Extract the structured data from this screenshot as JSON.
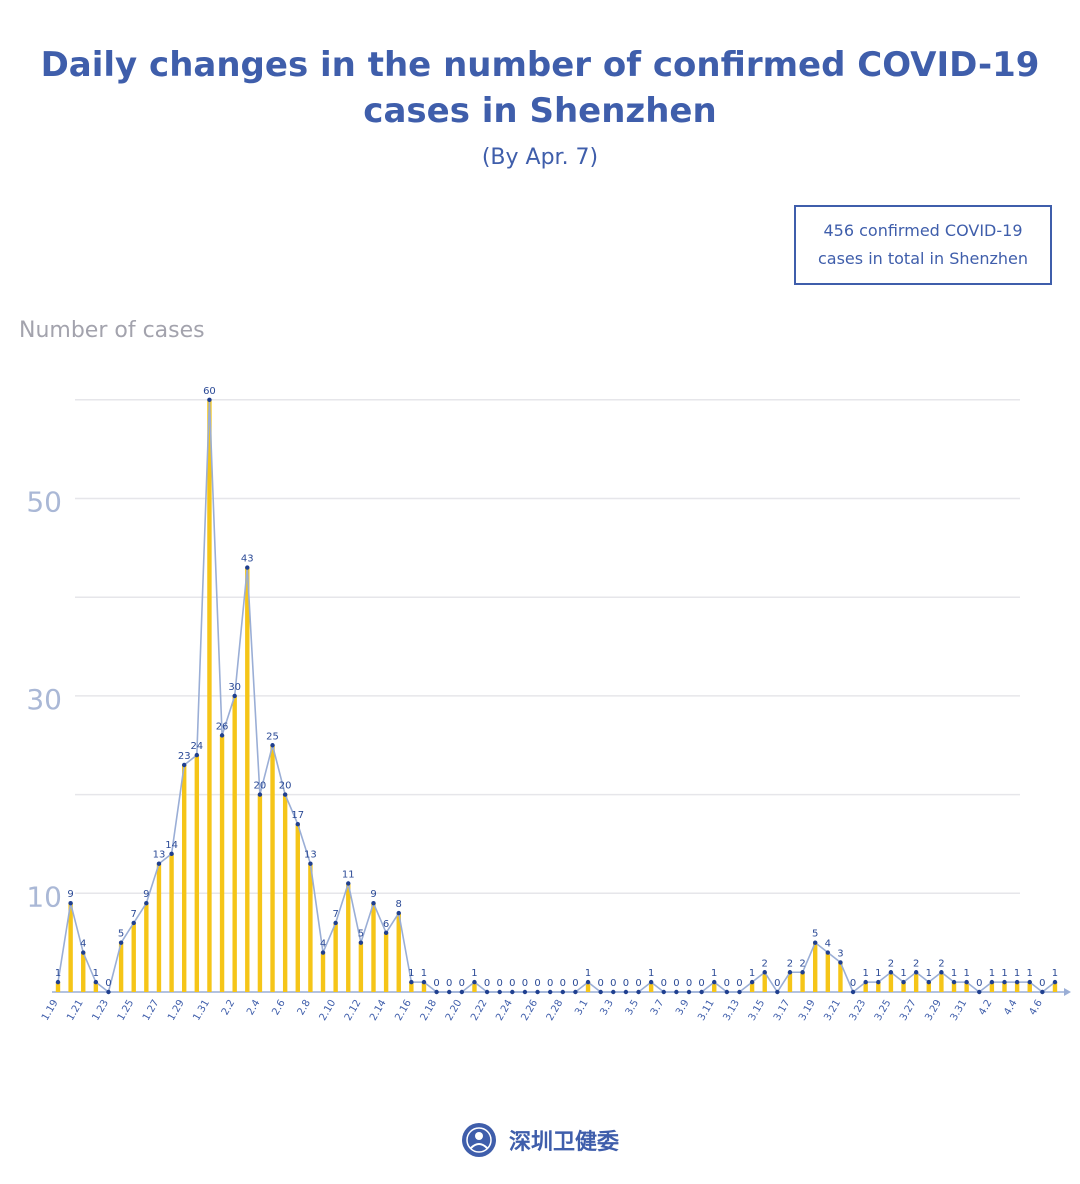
{
  "header": {
    "title": "Daily changes in the number of confirmed COVID-19 cases in Shenzhen",
    "subtitle": "(By Apr. 7)"
  },
  "summary": {
    "line1": "456 confirmed COVID-19",
    "line2": "cases in total in Shenzhen"
  },
  "footer": {
    "logo_text": "深圳卫健委",
    "logo_icon": "health-commission-seal-icon"
  },
  "colors": {
    "title": "#3f5eab",
    "bar": "#f5c518",
    "line": "#9aaed6",
    "point": "#1f3f8f",
    "grid": "#e6e6ea",
    "axis_label": "#a3a3ad"
  },
  "chart_data": {
    "type": "bar",
    "overlay": "line",
    "title": "Daily changes in the number of confirmed COVID-19 cases in Shenzhen",
    "subtitle": "(By Apr. 7)",
    "xlabel": "",
    "ylabel": "Number of cases",
    "ylim": [
      0,
      60
    ],
    "y_ticks": [
      10,
      30,
      50
    ],
    "grid": true,
    "legend": "none",
    "categories": [
      "1.19",
      "1.20",
      "1.21",
      "1.22",
      "1.23",
      "1.24",
      "1.25",
      "1.26",
      "1.27",
      "1.28",
      "1.29",
      "1.30",
      "1.31",
      "2.1",
      "2.2",
      "2.3",
      "2.4",
      "2.5",
      "2.6",
      "2.7",
      "2.8",
      "2.9",
      "2.10",
      "2.11",
      "2.12",
      "2.13",
      "2.14",
      "2.15",
      "2.16",
      "2.17",
      "2.18",
      "2.19",
      "2.20",
      "2.21",
      "2.22",
      "2.23",
      "2.24",
      "2.25",
      "2.26",
      "2.27",
      "2.28",
      "2.29",
      "3.1",
      "3.2",
      "3.3",
      "3.4",
      "3.5",
      "3.6",
      "3.7",
      "3.8",
      "3.9",
      "3.10",
      "3.11",
      "3.12",
      "3.13",
      "3.14",
      "3.15",
      "3.16",
      "3.17",
      "3.18",
      "3.19",
      "3.20",
      "3.21",
      "3.22",
      "3.23",
      "3.24",
      "3.25",
      "3.26",
      "3.27",
      "3.28",
      "3.29",
      "3.30",
      "3.31",
      "4.1",
      "4.2",
      "4.3",
      "4.4",
      "4.5",
      "4.6",
      "4.7"
    ],
    "x_tick_labels": [
      "1.19",
      "1.21",
      "1.23",
      "1.25",
      "1.27",
      "1.29",
      "1.31",
      "2.2",
      "2.4",
      "2.6",
      "2.8",
      "2.10",
      "2.12",
      "2.14",
      "2.16",
      "2.18",
      "2.20",
      "2.22",
      "2.24",
      "2.26",
      "2.28",
      "3.1",
      "3.3",
      "3.5",
      "3.7",
      "3.9",
      "3.11",
      "3.13",
      "3.15",
      "3.17",
      "3.19",
      "3.21",
      "3.23",
      "3.25",
      "3.27",
      "3.29",
      "3.31",
      "4.2",
      "4.4",
      "4.6"
    ],
    "values": [
      1,
      9,
      4,
      1,
      0,
      5,
      7,
      9,
      13,
      14,
      23,
      24,
      60,
      26,
      30,
      43,
      20,
      25,
      20,
      17,
      13,
      4,
      7,
      11,
      5,
      9,
      6,
      8,
      1,
      1,
      0,
      0,
      0,
      1,
      0,
      0,
      0,
      0,
      0,
      0,
      0,
      0,
      1,
      0,
      0,
      0,
      0,
      1,
      0,
      0,
      0,
      0,
      1,
      0,
      0,
      1,
      2,
      0,
      2,
      2,
      5,
      4,
      3,
      0,
      1,
      1,
      2,
      1,
      2,
      1,
      2,
      1,
      1,
      0,
      1,
      1,
      1,
      1,
      0,
      1
    ]
  }
}
